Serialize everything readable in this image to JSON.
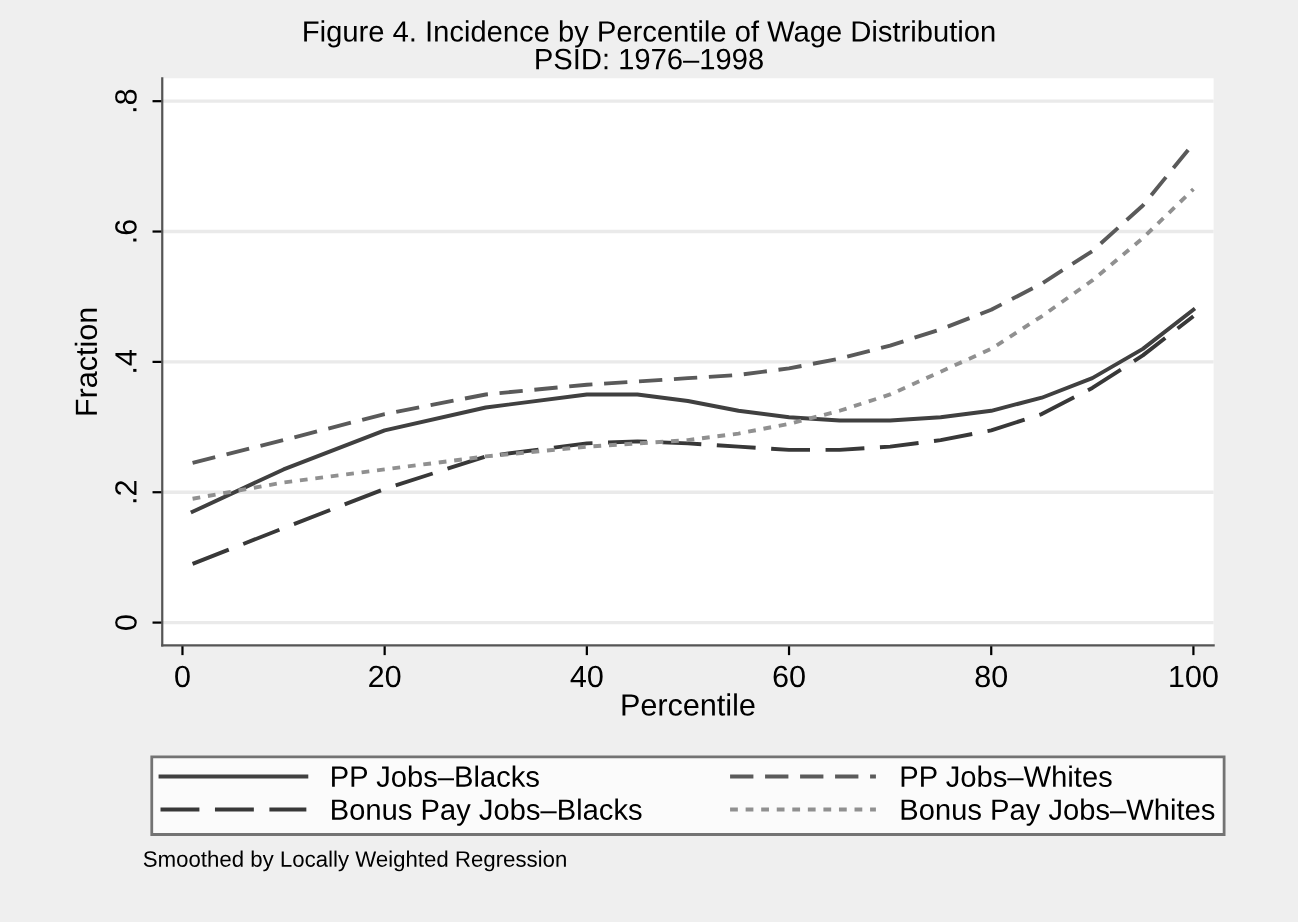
{
  "chart_data": {
    "type": "line",
    "title": "Figure 4. Incidence by Percentile of Wage Distribution",
    "subtitle": "PSID: 1976–1998",
    "xlabel": "Percentile",
    "ylabel": "Fraction",
    "x": [
      1,
      10,
      20,
      30,
      40,
      45,
      50,
      55,
      60,
      65,
      70,
      75,
      80,
      85,
      90,
      95,
      100
    ],
    "series": [
      {
        "name": "PP Jobs–Blacks",
        "color": "#404040",
        "line_style": "solid",
        "values": [
          0.17,
          0.235,
          0.295,
          0.33,
          0.35,
          0.35,
          0.34,
          0.325,
          0.315,
          0.31,
          0.31,
          0.315,
          0.325,
          0.345,
          0.375,
          0.42,
          0.48
        ]
      },
      {
        "name": "PP Jobs–Whites",
        "color": "#5a5a5a",
        "line_style": "dashed",
        "values": [
          0.245,
          0.28,
          0.32,
          0.35,
          0.365,
          0.37,
          0.375,
          0.38,
          0.39,
          0.405,
          0.425,
          0.45,
          0.48,
          0.52,
          0.57,
          0.64,
          0.735
        ]
      },
      {
        "name": "Bonus Pay Jobs–Blacks",
        "color": "#383838",
        "line_style": "dashed",
        "values": [
          0.09,
          0.145,
          0.205,
          0.255,
          0.275,
          0.278,
          0.275,
          0.27,
          0.265,
          0.265,
          0.27,
          0.28,
          0.295,
          0.32,
          0.36,
          0.41,
          0.47
        ]
      },
      {
        "name": "Bonus Pay Jobs–Whites",
        "color": "#909090",
        "line_style": "dotted",
        "values": [
          0.19,
          0.215,
          0.235,
          0.255,
          0.27,
          0.275,
          0.28,
          0.29,
          0.305,
          0.325,
          0.35,
          0.385,
          0.42,
          0.47,
          0.525,
          0.59,
          0.665
        ]
      }
    ],
    "xlim": [
      -2,
      102
    ],
    "ylim": [
      -0.035,
      0.835
    ],
    "xticks": [
      0,
      20,
      40,
      60,
      80,
      100
    ],
    "yticks": [
      0,
      {
        "value": 0.2,
        "label": ".2"
      },
      {
        "value": 0.4,
        "label": ".4"
      },
      {
        "value": 0.6,
        "label": ".6"
      },
      {
        "value": 0.8,
        "label": ".8"
      }
    ],
    "grid": "y",
    "legend": "bottom",
    "annotations": [
      "Smoothed by Locally Weighted Regression"
    ]
  }
}
